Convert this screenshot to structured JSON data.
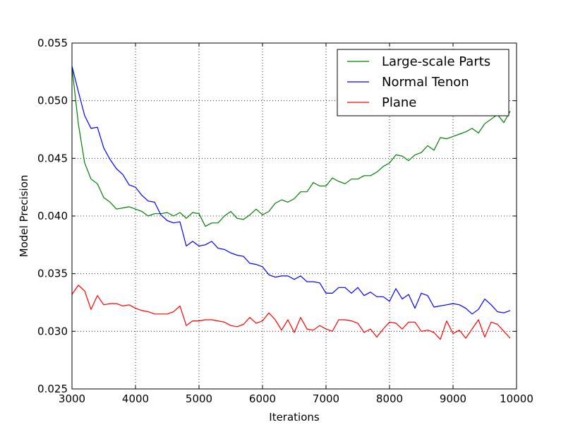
{
  "chart_data": {
    "type": "line",
    "title": "",
    "xlabel": "Iterations",
    "ylabel": "Model Precision",
    "xlim": [
      3000,
      10000
    ],
    "ylim": [
      0.025,
      0.055
    ],
    "grid": true,
    "legend_position": "top-right",
    "x_ticks": [
      3000,
      4000,
      5000,
      6000,
      7000,
      8000,
      9000,
      10000
    ],
    "x_tick_labels": [
      "3000",
      "4000",
      "5000",
      "6000",
      "7000",
      "8000",
      "9000",
      "10000"
    ],
    "y_ticks": [
      0.025,
      0.03,
      0.035,
      0.04,
      0.045,
      0.05,
      0.055
    ],
    "y_tick_labels": [
      "0.025",
      "0.030",
      "0.035",
      "0.040",
      "0.045",
      "0.050",
      "0.055"
    ],
    "x": [
      3000,
      3100,
      3200,
      3300,
      3400,
      3500,
      3600,
      3700,
      3800,
      3900,
      4000,
      4100,
      4200,
      4300,
      4400,
      4500,
      4600,
      4700,
      4800,
      4900,
      5000,
      5100,
      5200,
      5300,
      5400,
      5500,
      5600,
      5700,
      5800,
      5900,
      6000,
      6100,
      6200,
      6300,
      6400,
      6500,
      6600,
      6700,
      6800,
      6900,
      7000,
      7100,
      7200,
      7300,
      7400,
      7500,
      7600,
      7700,
      7800,
      7900,
      8000,
      8100,
      8200,
      8300,
      8400,
      8500,
      8600,
      8700,
      8800,
      8900,
      9000,
      9100,
      9200,
      9300,
      9400,
      9500,
      9600,
      9700,
      9800,
      9900
    ],
    "series": [
      {
        "name": "Large-scale Parts",
        "color": "#008000",
        "values": [
          0.0529,
          0.048,
          0.0446,
          0.0432,
          0.0428,
          0.0416,
          0.0412,
          0.0406,
          0.0407,
          0.0408,
          0.0406,
          0.0404,
          0.04,
          0.0402,
          0.0402,
          0.0403,
          0.04,
          0.0403,
          0.0398,
          0.0403,
          0.0402,
          0.0391,
          0.0394,
          0.0394,
          0.04,
          0.0404,
          0.0398,
          0.0397,
          0.0401,
          0.0406,
          0.0401,
          0.0404,
          0.0411,
          0.0414,
          0.0412,
          0.0415,
          0.0421,
          0.0421,
          0.0429,
          0.0426,
          0.0426,
          0.0433,
          0.043,
          0.0428,
          0.0432,
          0.0432,
          0.0435,
          0.0435,
          0.0438,
          0.0443,
          0.0446,
          0.0453,
          0.0452,
          0.0448,
          0.0453,
          0.0455,
          0.0461,
          0.0457,
          0.0468,
          0.0467,
          0.0469,
          0.0471,
          0.0473,
          0.0476,
          0.0472,
          0.048,
          0.0484,
          0.0488,
          0.0481,
          0.0491
        ]
      },
      {
        "name": "Normal Tenon",
        "color": "#0000ff",
        "values": [
          0.053,
          0.0508,
          0.0487,
          0.0476,
          0.0477,
          0.0459,
          0.0449,
          0.0441,
          0.0436,
          0.0427,
          0.0425,
          0.0418,
          0.0413,
          0.0412,
          0.0401,
          0.0396,
          0.0394,
          0.0395,
          0.0374,
          0.0378,
          0.0374,
          0.0375,
          0.0378,
          0.0372,
          0.0371,
          0.0368,
          0.0366,
          0.0365,
          0.0359,
          0.0358,
          0.0356,
          0.0349,
          0.0347,
          0.0348,
          0.0348,
          0.0345,
          0.0348,
          0.0343,
          0.0343,
          0.0342,
          0.0333,
          0.0333,
          0.0338,
          0.0338,
          0.0333,
          0.0338,
          0.0331,
          0.0334,
          0.033,
          0.033,
          0.0326,
          0.0337,
          0.0328,
          0.0332,
          0.032,
          0.0333,
          0.0331,
          0.0321,
          0.0322,
          0.0323,
          0.0324,
          0.0323,
          0.032,
          0.0315,
          0.0319,
          0.0328,
          0.0323,
          0.0317,
          0.0316,
          0.0318
        ]
      },
      {
        "name": "Plane",
        "color": "#ff0000",
        "values": [
          0.0332,
          0.034,
          0.0335,
          0.0319,
          0.0331,
          0.0323,
          0.0324,
          0.0324,
          0.0322,
          0.0323,
          0.032,
          0.0318,
          0.0317,
          0.0315,
          0.0315,
          0.0315,
          0.0317,
          0.0322,
          0.0305,
          0.0309,
          0.0309,
          0.031,
          0.031,
          0.0309,
          0.0308,
          0.0305,
          0.0304,
          0.0306,
          0.0312,
          0.0307,
          0.0309,
          0.0316,
          0.031,
          0.0301,
          0.031,
          0.0299,
          0.0312,
          0.0302,
          0.0301,
          0.0305,
          0.0302,
          0.03,
          0.031,
          0.031,
          0.0309,
          0.0307,
          0.0299,
          0.0302,
          0.0295,
          0.0302,
          0.0308,
          0.0307,
          0.0302,
          0.0308,
          0.0308,
          0.03,
          0.0301,
          0.0299,
          0.0293,
          0.0309,
          0.0298,
          0.0301,
          0.0294,
          0.0302,
          0.031,
          0.0295,
          0.0308,
          0.0306,
          0.03,
          0.0294
        ]
      }
    ]
  }
}
